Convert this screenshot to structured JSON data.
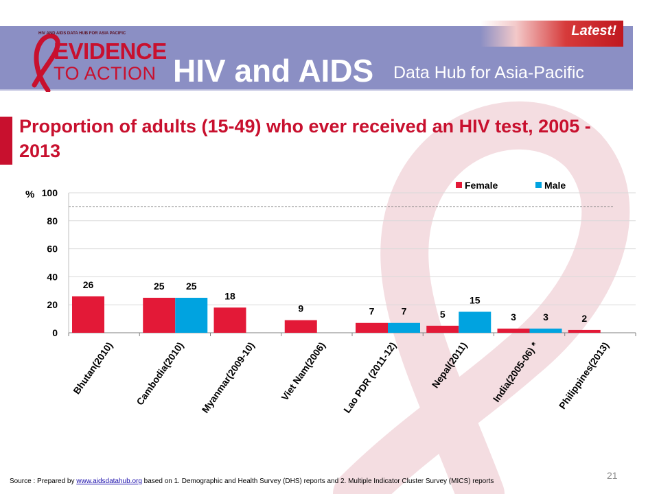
{
  "header": {
    "latest_label": "Latest!",
    "logo_small_text": "HIV AND AIDS DATA HUB FOR ASIA PACIFIC",
    "logo_line1": "EVIDENCE",
    "logo_line2": "TO ACTION",
    "app_title": "HIV and AIDS",
    "app_subtitle": "Data Hub for Asia-Pacific"
  },
  "slide": {
    "title": "Proportion  of adults (15-49) who ever received an HIV test, 2005 - 2013",
    "page_number": "21"
  },
  "source": {
    "prefix": "Source : Prepared by ",
    "link": "www.aidsdatahub.org",
    "suffix": " based on 1. Demographic and Health Survey (DHS) reports and 2. Multiple Indicator Cluster  Survey (MICS) reports"
  },
  "colors": {
    "accent": "#c8102e",
    "header": "#8b8fc4",
    "female": "#e31937",
    "male": "#00a3e0"
  },
  "chart_data": {
    "type": "bar",
    "ylabel": "%",
    "ylim": [
      0,
      100
    ],
    "yticks": [
      0,
      20,
      40,
      60,
      80,
      100
    ],
    "grid": true,
    "legend_position": "top-right",
    "categories": [
      "Bhutan(2010)",
      "Cambodia(2010)",
      "Myanmar(2009-10)",
      "Viet Nam(2006)",
      "Lao PDR (2011-12)",
      "Nepal(2011)",
      "India(2005-06) *",
      "Philippines(2013)"
    ],
    "series": [
      {
        "name": "Female",
        "color": "#e31937",
        "values": [
          26,
          25,
          18,
          9,
          7,
          5,
          3,
          2
        ]
      },
      {
        "name": "Male",
        "color": "#00a3e0",
        "values": [
          null,
          25,
          null,
          null,
          7,
          15,
          3,
          null
        ]
      }
    ],
    "reference_line": 90
  }
}
